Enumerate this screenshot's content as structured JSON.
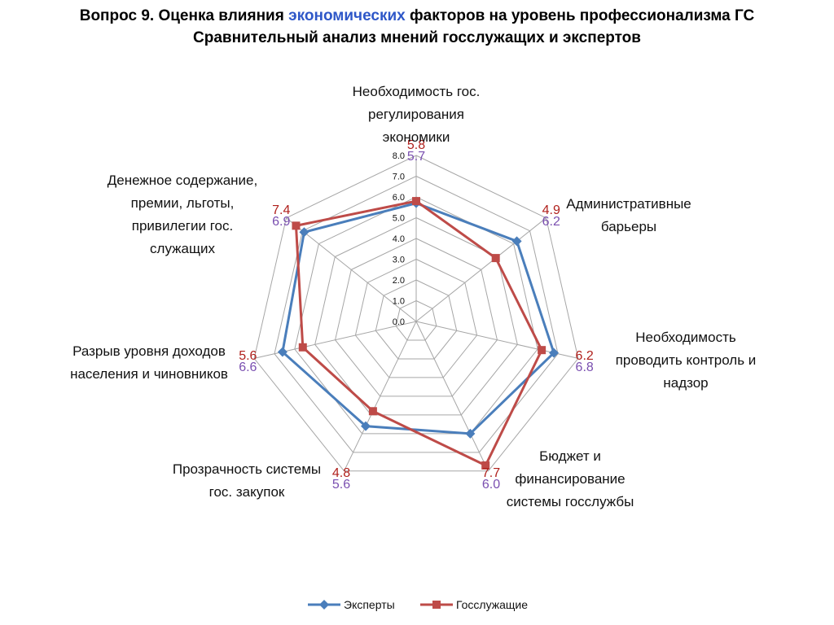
{
  "title": {
    "line1_prefix": "Вопрос 9. Оценка влияния ",
    "line1_accent": "экономических",
    "line1_suffix": " факторов на уровень профессионализма ГС",
    "line2": "Сравнительный анализ мнений госслужащих и экспертов",
    "accent_color": "#2e57c8"
  },
  "chart_data": {
    "type": "radar",
    "categories": [
      "Необходимость гос. регулирования экономики",
      "Административные барьеры",
      "Необходимость проводить контроль и надзор",
      "Бюджет и финансирование системы госслужбы",
      "Прозрачность системы гос. закупок",
      "Разрыв уровня доходов населения и чиновников",
      "Денежное содержание, премии, льготы, привилегии гос. служащих"
    ],
    "category_lines": [
      [
        "Необходимость гос.",
        "регулирования",
        "экономики"
      ],
      [
        "Административные",
        "барьеры"
      ],
      [
        "Необходимость",
        "проводить контроль и",
        "надзор"
      ],
      [
        "Бюджет и",
        "финансирование",
        "системы госслужбы"
      ],
      [
        "Прозрачность системы",
        "гос. закупок"
      ],
      [
        "Разрыв уровня доходов",
        "населения и чиновников"
      ],
      [
        "Денежное содержание,",
        "премии, льготы,",
        "привилегии гос.",
        "служащих"
      ]
    ],
    "rlim": [
      0,
      8
    ],
    "ticks": [
      "0.0",
      "1.0",
      "2.0",
      "3.0",
      "4.0",
      "5.0",
      "6.0",
      "7.0",
      "8.0"
    ],
    "grid": true,
    "legend_position": "bottom",
    "series": [
      {
        "name": "Эксперты",
        "values": [
          5.7,
          6.2,
          6.8,
          6.0,
          5.6,
          6.6,
          6.9
        ],
        "labels": [
          "5.7",
          "6.2",
          "6.8",
          "6.0",
          "5.6",
          "6.6",
          "6.9"
        ],
        "color": "#4a7ebb",
        "label_color": "#7a4fb0",
        "marker": "diamond"
      },
      {
        "name": "Госслужащие",
        "values": [
          5.8,
          4.9,
          6.2,
          7.7,
          4.8,
          5.6,
          7.4
        ],
        "labels": [
          "5.8",
          "4.9",
          "6.2",
          "7.7",
          "4.8",
          "5.6",
          "7.4"
        ],
        "color": "#be4b48",
        "label_color": "#b0201c",
        "marker": "square"
      }
    ]
  }
}
